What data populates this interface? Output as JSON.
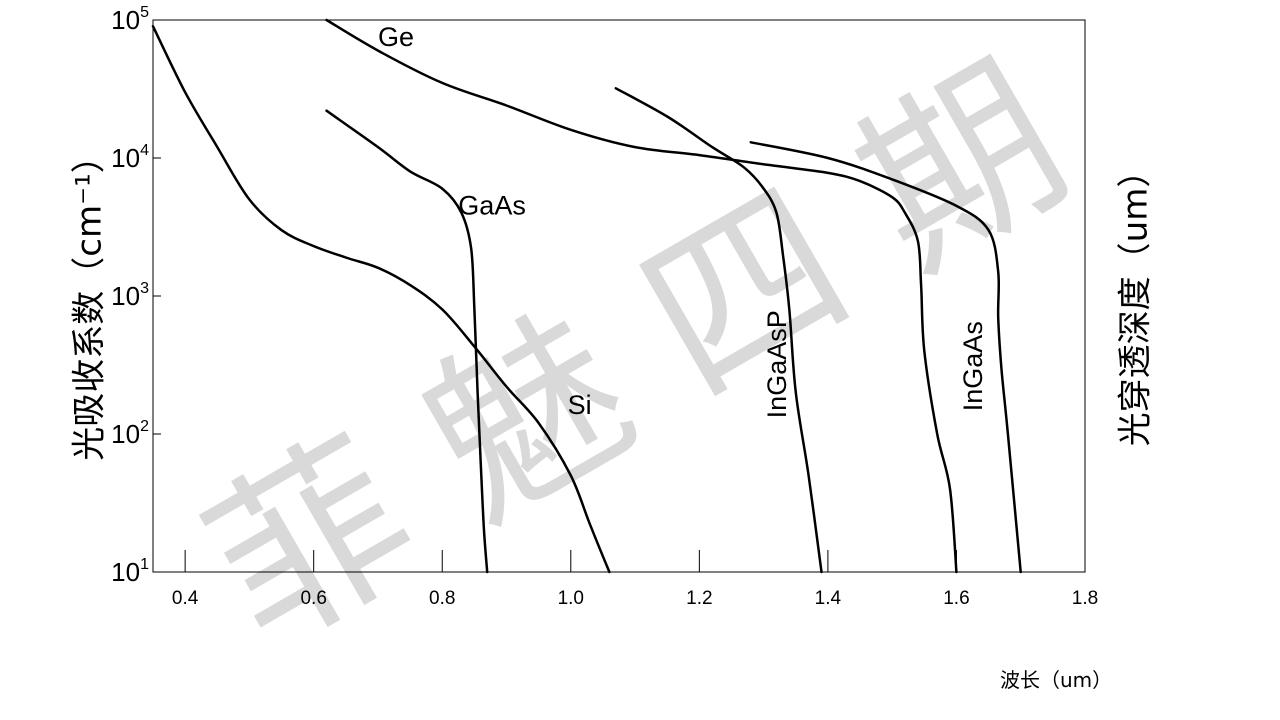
{
  "chart_data": {
    "type": "line",
    "xlabel": "波长（um）",
    "ylabel_left": "光吸收系数（cm⁻¹）",
    "ylabel_right": "光穿透深度（um）",
    "xlim": [
      0.35,
      1.8
    ],
    "ylim": [
      10,
      100000
    ],
    "yscale": "log",
    "grid": false,
    "x_ticks": [
      0.4,
      0.6,
      0.8,
      1.0,
      1.2,
      1.4,
      1.6,
      1.8
    ],
    "x_tick_labels": [
      "0.4",
      "0.6",
      "0.8",
      "1.0",
      "1.2",
      "1.4",
      "1.6",
      "1.8"
    ],
    "y_ticks": [
      {
        "value": 10,
        "base": "10",
        "exp": "1"
      },
      {
        "value": 100,
        "base": "10",
        "exp": "2"
      },
      {
        "value": 1000,
        "base": "10",
        "exp": "3"
      },
      {
        "value": 10000,
        "base": "10",
        "exp": "4"
      },
      {
        "value": 100000,
        "base": "10",
        "exp": "5"
      }
    ],
    "series": [
      {
        "name": "Si",
        "label_at": [
          0.995,
          140
        ],
        "points": [
          [
            0.35,
            90000
          ],
          [
            0.4,
            30000
          ],
          [
            0.45,
            12000
          ],
          [
            0.5,
            5000
          ],
          [
            0.55,
            3000
          ],
          [
            0.6,
            2300
          ],
          [
            0.65,
            1900
          ],
          [
            0.7,
            1600
          ],
          [
            0.75,
            1200
          ],
          [
            0.8,
            800
          ],
          [
            0.85,
            430
          ],
          [
            0.9,
            220
          ],
          [
            0.95,
            120
          ],
          [
            1.0,
            50
          ],
          [
            1.03,
            22
          ],
          [
            1.06,
            10
          ]
        ]
      },
      {
        "name": "Ge",
        "label_at": [
          0.7,
          65000
        ],
        "points": [
          [
            0.62,
            100000
          ],
          [
            0.7,
            60000
          ],
          [
            0.8,
            35000
          ],
          [
            0.9,
            24000
          ],
          [
            1.0,
            16000
          ],
          [
            1.1,
            12000
          ],
          [
            1.2,
            10500
          ],
          [
            1.3,
            9000
          ],
          [
            1.4,
            7800
          ],
          [
            1.45,
            6800
          ],
          [
            1.5,
            5200
          ],
          [
            1.52,
            4000
          ],
          [
            1.54,
            2500
          ],
          [
            1.545,
            1200
          ],
          [
            1.55,
            400
          ],
          [
            1.57,
            100
          ],
          [
            1.59,
            40
          ],
          [
            1.6,
            10
          ]
        ]
      },
      {
        "name": "GaAs",
        "label_at": [
          0.825,
          3900
        ],
        "points": [
          [
            0.62,
            22000
          ],
          [
            0.7,
            12000
          ],
          [
            0.75,
            8000
          ],
          [
            0.8,
            6000
          ],
          [
            0.83,
            4000
          ],
          [
            0.845,
            2200
          ],
          [
            0.85,
            800
          ],
          [
            0.855,
            200
          ],
          [
            0.86,
            60
          ],
          [
            0.865,
            20
          ],
          [
            0.87,
            10
          ]
        ]
      },
      {
        "name": "InGaAsP",
        "label_at": [
          1.335,
          320
        ],
        "label_rotate": -90,
        "points": [
          [
            1.07,
            32000
          ],
          [
            1.15,
            20000
          ],
          [
            1.22,
            12000
          ],
          [
            1.27,
            8500
          ],
          [
            1.3,
            6000
          ],
          [
            1.32,
            4000
          ],
          [
            1.33,
            2000
          ],
          [
            1.34,
            800
          ],
          [
            1.35,
            200
          ],
          [
            1.37,
            50
          ],
          [
            1.39,
            10
          ]
        ]
      },
      {
        "name": "InGaAs",
        "label_at": [
          1.64,
          310
        ],
        "label_rotate": -90,
        "points": [
          [
            1.28,
            13000
          ],
          [
            1.4,
            10000
          ],
          [
            1.5,
            7000
          ],
          [
            1.6,
            4500
          ],
          [
            1.65,
            3000
          ],
          [
            1.665,
            1500
          ],
          [
            1.665,
            700
          ],
          [
            1.67,
            300
          ],
          [
            1.68,
            100
          ],
          [
            1.7,
            10
          ]
        ]
      }
    ],
    "watermark": "菲 魅 四 期"
  }
}
